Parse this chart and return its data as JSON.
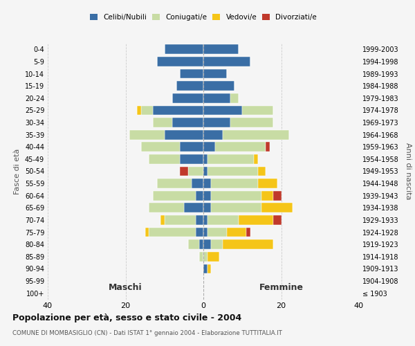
{
  "age_groups": [
    "0-4",
    "5-9",
    "10-14",
    "15-19",
    "20-24",
    "25-29",
    "30-34",
    "35-39",
    "40-44",
    "45-49",
    "50-54",
    "55-59",
    "60-64",
    "65-69",
    "70-74",
    "75-79",
    "80-84",
    "85-89",
    "90-94",
    "95-99",
    "100+"
  ],
  "birth_years": [
    "1999-2003",
    "1994-1998",
    "1989-1993",
    "1984-1988",
    "1979-1983",
    "1974-1978",
    "1969-1973",
    "1964-1968",
    "1959-1963",
    "1954-1958",
    "1949-1953",
    "1944-1948",
    "1939-1943",
    "1934-1938",
    "1929-1933",
    "1924-1928",
    "1919-1923",
    "1914-1918",
    "1909-1913",
    "1904-1908",
    "≤ 1903"
  ],
  "maschi": {
    "celibi": [
      10,
      12,
      6,
      7,
      8,
      13,
      8,
      10,
      6,
      6,
      0,
      3,
      2,
      5,
      2,
      2,
      1,
      0,
      0,
      0,
      0
    ],
    "coniugati": [
      0,
      0,
      0,
      0,
      0,
      3,
      5,
      9,
      10,
      8,
      4,
      9,
      11,
      9,
      8,
      12,
      3,
      1,
      0,
      0,
      0
    ],
    "vedovi": [
      0,
      0,
      0,
      0,
      0,
      1,
      0,
      0,
      0,
      0,
      0,
      0,
      0,
      0,
      1,
      1,
      0,
      0,
      0,
      0,
      0
    ],
    "divorziati": [
      0,
      0,
      0,
      0,
      0,
      0,
      0,
      0,
      0,
      0,
      2,
      0,
      0,
      0,
      0,
      0,
      0,
      0,
      0,
      0,
      0
    ]
  },
  "femmine": {
    "nubili": [
      9,
      12,
      6,
      8,
      7,
      10,
      7,
      5,
      3,
      1,
      1,
      2,
      2,
      2,
      1,
      1,
      2,
      0,
      1,
      0,
      0
    ],
    "coniugate": [
      0,
      0,
      0,
      0,
      2,
      8,
      11,
      17,
      13,
      12,
      13,
      12,
      13,
      13,
      8,
      5,
      3,
      1,
      0,
      0,
      0
    ],
    "vedove": [
      0,
      0,
      0,
      0,
      0,
      0,
      0,
      0,
      0,
      1,
      2,
      5,
      3,
      8,
      9,
      5,
      13,
      3,
      1,
      0,
      0
    ],
    "divorziate": [
      0,
      0,
      0,
      0,
      0,
      0,
      0,
      0,
      1,
      0,
      0,
      0,
      2,
      0,
      2,
      1,
      0,
      0,
      0,
      0,
      0
    ]
  },
  "colors": {
    "celibi_nubili": "#3a6ea5",
    "coniugati": "#c8dca4",
    "vedovi": "#f5c518",
    "divorziati": "#c0392b"
  },
  "title": "Popolazione per età, sesso e stato civile - 2004",
  "subtitle": "COMUNE DI MOMBASIGLIO (CN) - Dati ISTAT 1° gennaio 2004 - Elaborazione TUTTITALIA.IT",
  "xlabel_left": "Maschi",
  "xlabel_right": "Femmine",
  "ylabel_left": "Fasce di età",
  "ylabel_right": "Anni di nascita",
  "xlim": 40,
  "background_color": "#f5f5f5"
}
